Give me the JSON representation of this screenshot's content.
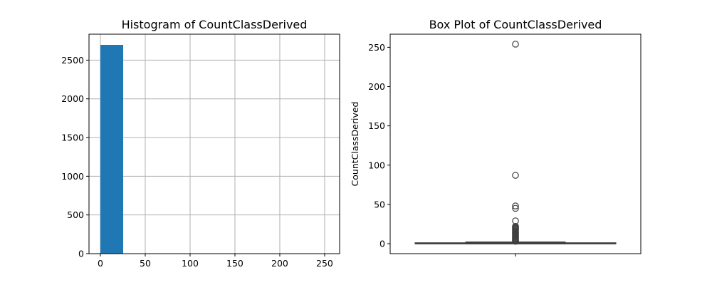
{
  "chart_data": [
    {
      "type": "bar",
      "title": "Histogram of CountClassDerived",
      "xlabel": "",
      "ylabel": "",
      "grid": true,
      "xlim": [
        -12.7,
        266.7
      ],
      "ylim": [
        0,
        2835
      ],
      "xticks": [
        0,
        50,
        100,
        150,
        200,
        250
      ],
      "yticks": [
        0,
        500,
        1000,
        1500,
        2000,
        2500
      ],
      "color": "#1f77b4",
      "bins": [
        {
          "start": 0,
          "end": 25.4,
          "count": 2697
        },
        {
          "start": 25.4,
          "end": 50.8,
          "count": 4
        },
        {
          "start": 50.8,
          "end": 76.2,
          "count": 0
        },
        {
          "start": 76.2,
          "end": 101.6,
          "count": 1
        },
        {
          "start": 101.6,
          "end": 127.0,
          "count": 0
        },
        {
          "start": 127.0,
          "end": 152.4,
          "count": 0
        },
        {
          "start": 152.4,
          "end": 177.8,
          "count": 0
        },
        {
          "start": 177.8,
          "end": 203.2,
          "count": 0
        },
        {
          "start": 203.2,
          "end": 228.6,
          "count": 0
        },
        {
          "start": 228.6,
          "end": 254.0,
          "count": 1
        }
      ]
    },
    {
      "type": "box",
      "title": "Box Plot of CountClassDerived",
      "xlabel": "",
      "ylabel": "CountClassDerived",
      "grid": false,
      "ylim": [
        -12.7,
        266.7
      ],
      "yticks": [
        0,
        50,
        100,
        150,
        200,
        250
      ],
      "box": {
        "q1": 0,
        "median": 0,
        "q3": 1,
        "whisker_low": 0,
        "whisker_high": 2
      },
      "outliers": [
        3,
        4,
        5,
        6,
        7,
        8,
        9,
        10,
        11,
        12,
        13,
        14,
        15,
        16,
        17,
        18,
        19,
        20,
        21,
        22,
        29,
        45,
        48,
        87,
        254
      ]
    }
  ]
}
